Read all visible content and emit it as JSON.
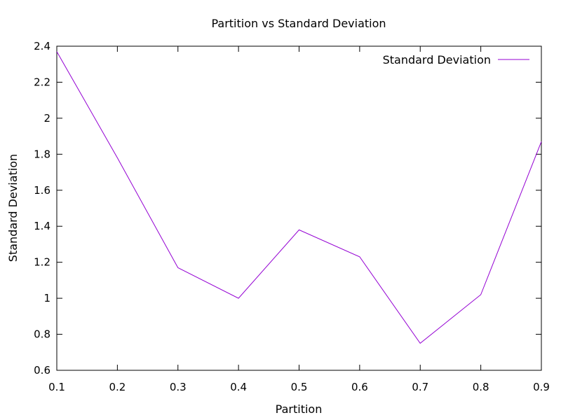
{
  "chart_data": {
    "type": "line",
    "title": "Partition vs Standard Deviation",
    "xlabel": "Partition",
    "ylabel": "Standard Deviation",
    "xlim": [
      0.1,
      0.9
    ],
    "ylim": [
      0.6,
      2.4
    ],
    "xticks": [
      "0.1",
      "0.2",
      "0.3",
      "0.4",
      "0.5",
      "0.6",
      "0.7",
      "0.8",
      "0.9"
    ],
    "yticks": [
      "0.6",
      "0.8",
      "1",
      "1.2",
      "1.4",
      "1.6",
      "1.8",
      "2",
      "2.2",
      "2.4"
    ],
    "grid": false,
    "legend": "top-right",
    "series": [
      {
        "name": "Standard Deviation",
        "color": "#9400d3",
        "x": [
          0.1,
          0.2,
          0.3,
          0.4,
          0.5,
          0.6,
          0.7,
          0.8,
          0.9
        ],
        "y": [
          2.37,
          1.78,
          1.17,
          1.0,
          1.38,
          1.23,
          0.75,
          1.02,
          1.87
        ]
      }
    ]
  }
}
